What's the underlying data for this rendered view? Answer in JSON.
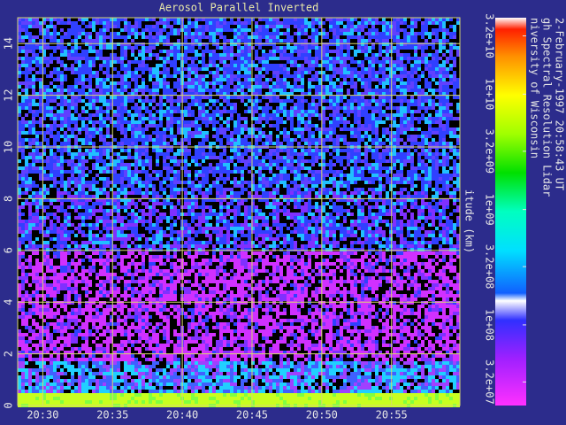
{
  "chart_data": {
    "type": "heatmap",
    "title": "Aerosol Parallel Inverted",
    "y_label": "itude (km)",
    "ylim": [
      0,
      15
    ],
    "yticks": [
      0,
      2,
      4,
      6,
      8,
      10,
      12,
      14
    ],
    "xlim": [
      28.2,
      59.9
    ],
    "xticks": [
      {
        "value": 30,
        "label": "20:30"
      },
      {
        "value": 35,
        "label": "20:35"
      },
      {
        "value": 40,
        "label": "20:40"
      },
      {
        "value": 45,
        "label": "20:45"
      },
      {
        "value": 50,
        "label": "20:50"
      },
      {
        "value": 55,
        "label": "20:55"
      }
    ],
    "grid": true,
    "colorbar": {
      "log": true,
      "lim": [
        20000000,
        46000000000
      ],
      "ticks": [
        {
          "value": 32000000,
          "label": "3.2e+07"
        },
        {
          "value": 100000000,
          "label": "1e+08"
        },
        {
          "value": 320000000,
          "label": "3.2e+08"
        },
        {
          "value": 1000000000,
          "label": "1e+09"
        },
        {
          "value": 3200000000,
          "label": "3.2e+09"
        },
        {
          "value": 10000000000,
          "label": "1e+10"
        },
        {
          "value": 32000000000,
          "label": "3.2e+10"
        }
      ]
    },
    "notes": [
      "niversity of Wisconsin",
      "gh Spectral Resolution Lidar",
      "2-February-1997 20:58:43 UT"
    ]
  }
}
